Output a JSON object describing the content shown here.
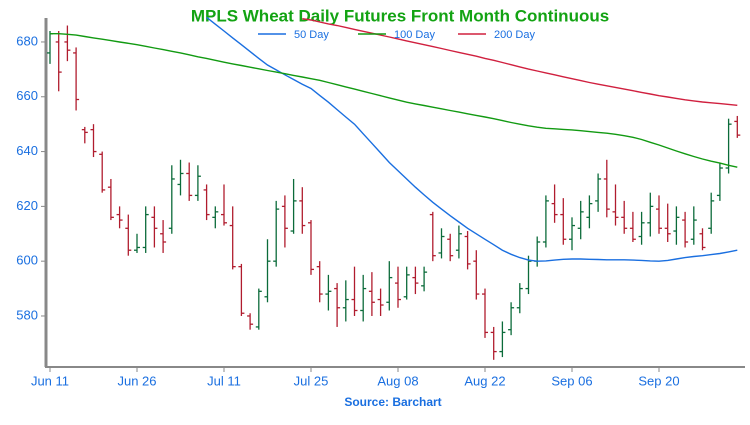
{
  "chart_data": {
    "type": "ohlc",
    "title": "MPLS Wheat Daily Futures Front Month Continuous",
    "source": "Source: Barchart",
    "categories": [
      "Jun 11",
      null,
      null,
      null,
      null,
      null,
      null,
      null,
      null,
      null,
      "Jun 26",
      null,
      null,
      null,
      null,
      null,
      null,
      null,
      null,
      null,
      "Jul 11",
      null,
      null,
      null,
      null,
      null,
      null,
      null,
      null,
      null,
      "Jul 25",
      null,
      null,
      null,
      null,
      null,
      null,
      null,
      null,
      null,
      "Aug 08",
      null,
      null,
      null,
      null,
      null,
      null,
      null,
      null,
      null,
      "Aug 22",
      null,
      null,
      null,
      null,
      null,
      null,
      null,
      null,
      null,
      "Sep 06",
      null,
      null,
      null,
      null,
      null,
      null,
      null,
      null,
      null,
      "Sep 20",
      null,
      null,
      null,
      null,
      null,
      null,
      null,
      null,
      null
    ],
    "open": [
      676,
      680,
      680,
      676,
      648,
      648,
      639,
      627,
      617,
      612,
      604,
      605,
      616,
      610,
      612,
      628,
      632,
      624,
      626,
      616,
      617,
      613,
      598,
      580,
      576,
      587,
      600,
      620,
      611,
      622,
      614,
      598,
      588,
      590,
      583,
      586,
      582,
      589,
      586,
      585,
      592,
      587,
      594,
      591,
      617,
      603,
      608,
      604,
      609,
      600,
      588,
      574,
      567,
      575,
      583,
      590,
      600,
      607,
      621,
      617,
      608,
      612,
      616,
      622,
      630,
      618,
      616,
      612,
      609,
      614,
      619,
      612,
      611,
      615,
      608,
      610,
      612,
      624,
      634,
      651
    ],
    "high": [
      684,
      684,
      686,
      678,
      649,
      650,
      640,
      630,
      620,
      617,
      610,
      620,
      620,
      615,
      635,
      637,
      636,
      635,
      628,
      620,
      628,
      620,
      599,
      581,
      590,
      608,
      622,
      624,
      630,
      627,
      615,
      600,
      595,
      592,
      593,
      598,
      595,
      596,
      590,
      600,
      598,
      598,
      598,
      598,
      618,
      612,
      610,
      613,
      611,
      604,
      590,
      576,
      578,
      585,
      592,
      602,
      609,
      624,
      628,
      623,
      616,
      622,
      624,
      632,
      637,
      628,
      622,
      618,
      618,
      625,
      624,
      621,
      620,
      618,
      620,
      612,
      625,
      636,
      652,
      653
    ],
    "low": [
      672,
      662,
      673,
      655,
      643,
      638,
      625,
      615,
      612,
      602,
      603,
      603,
      605,
      603,
      610,
      624,
      622,
      622,
      615,
      612,
      613,
      597,
      580,
      575,
      575,
      585,
      598,
      605,
      610,
      610,
      595,
      585,
      582,
      576,
      578,
      580,
      578,
      580,
      580,
      582,
      583,
      586,
      588,
      589,
      600,
      601,
      600,
      601,
      597,
      586,
      572,
      564,
      565,
      573,
      581,
      588,
      598,
      605,
      614,
      606,
      604,
      608,
      612,
      618,
      616,
      613,
      610,
      607,
      606,
      609,
      610,
      607,
      606,
      605,
      606,
      604,
      610,
      622,
      632,
      645
    ],
    "close": [
      683,
      669,
      677,
      659,
      647,
      640,
      626,
      616,
      615,
      604,
      605,
      617,
      612,
      607,
      630,
      632,
      624,
      631,
      617,
      618,
      614,
      598,
      581,
      577,
      589,
      600,
      619,
      612,
      622,
      613,
      597,
      588,
      589,
      583,
      586,
      582,
      590,
      585,
      584,
      594,
      586,
      595,
      592,
      596,
      602,
      609,
      602,
      610,
      599,
      588,
      574,
      567,
      574,
      583,
      590,
      600,
      607,
      622,
      617,
      608,
      613,
      618,
      621,
      630,
      619,
      616,
      612,
      608,
      614,
      620,
      612,
      610,
      616,
      607,
      615,
      605,
      622,
      634,
      650,
      646
    ],
    "up_color": "#0b6b3a",
    "down_color": "#b01c2e",
    "moving_averages": [
      {
        "name": "50 Day",
        "color": "#1a6fe0",
        "values": [
          null,
          null,
          null,
          null,
          null,
          null,
          null,
          null,
          null,
          null,
          null,
          null,
          null,
          null,
          null,
          null,
          null,
          null,
          689,
          686.5,
          684,
          681.5,
          679,
          676.5,
          674,
          671.6,
          669.8,
          668,
          666.3,
          664.6,
          663,
          660.5,
          658,
          655.3,
          652.6,
          650,
          646.5,
          643,
          639.5,
          636,
          633,
          630,
          627,
          624.2,
          621.5,
          619,
          616.6,
          614.3,
          612,
          610,
          608,
          606,
          604,
          602.5,
          601.3,
          600.4,
          600,
          600.1,
          600.4,
          600.7,
          600.8,
          600.8,
          600.7,
          600.6,
          600.5,
          600.5,
          600.5,
          600.4,
          600.3,
          600.1,
          600,
          600.3,
          600.8,
          601.3,
          601.7,
          602,
          602.4,
          602.8,
          603.4,
          604
        ]
      },
      {
        "name": "100 Day",
        "color": "#129a12",
        "values": [
          683,
          683,
          682.8,
          682.5,
          682,
          681.5,
          681,
          680.5,
          680,
          679.5,
          679,
          678.4,
          677.8,
          677.2,
          676.6,
          676,
          675.3,
          674.6,
          674,
          673.3,
          672.6,
          672,
          671.4,
          670.8,
          670.2,
          669.6,
          669,
          668.4,
          667.8,
          667.2,
          666.6,
          666,
          665.2,
          664.4,
          663.6,
          662.8,
          662,
          661.2,
          660.4,
          659.6,
          658.8,
          658,
          657.4,
          656.8,
          656.2,
          655.6,
          655,
          654.4,
          653.8,
          653.2,
          652.6,
          652,
          651.3,
          650.6,
          650,
          649.4,
          648.9,
          648.5,
          648.3,
          648.1,
          647.9,
          647.6,
          647.3,
          647,
          646.7,
          646.3,
          645.8,
          645.2,
          644.4,
          643.4,
          642.4,
          641.3,
          640.2,
          639.2,
          638.2,
          637.3,
          636.5,
          635.8,
          635,
          634.3
        ]
      },
      {
        "name": "200 Day",
        "color": "#d0203f",
        "values": [
          null,
          null,
          null,
          null,
          null,
          null,
          null,
          null,
          null,
          null,
          null,
          null,
          null,
          null,
          null,
          null,
          null,
          null,
          null,
          null,
          null,
          null,
          null,
          null,
          null,
          null,
          null,
          null,
          null,
          688.5,
          688,
          687.3,
          686.6,
          686,
          685.3,
          684.6,
          683.9,
          683.2,
          682.5,
          681.8,
          681.1,
          680.4,
          679.7,
          679,
          678.3,
          677.6,
          676.9,
          676.2,
          675.5,
          674.8,
          674,
          673.3,
          672.5,
          671.7,
          670.9,
          670.1,
          669.4,
          668.7,
          668,
          667.3,
          666.6,
          665.9,
          665.2,
          664.6,
          664,
          663.4,
          662.8,
          662.2,
          661.6,
          661,
          660.4,
          659.9,
          659.4,
          658.9,
          658.5,
          658.1,
          657.8,
          657.5,
          657.2,
          656.9
        ]
      }
    ],
    "ylim": [
      562,
      689
    ],
    "yticks": [
      580,
      600,
      620,
      640,
      660,
      680
    ],
    "label_color": "#1a6fe0",
    "title_color": "#13a313"
  }
}
